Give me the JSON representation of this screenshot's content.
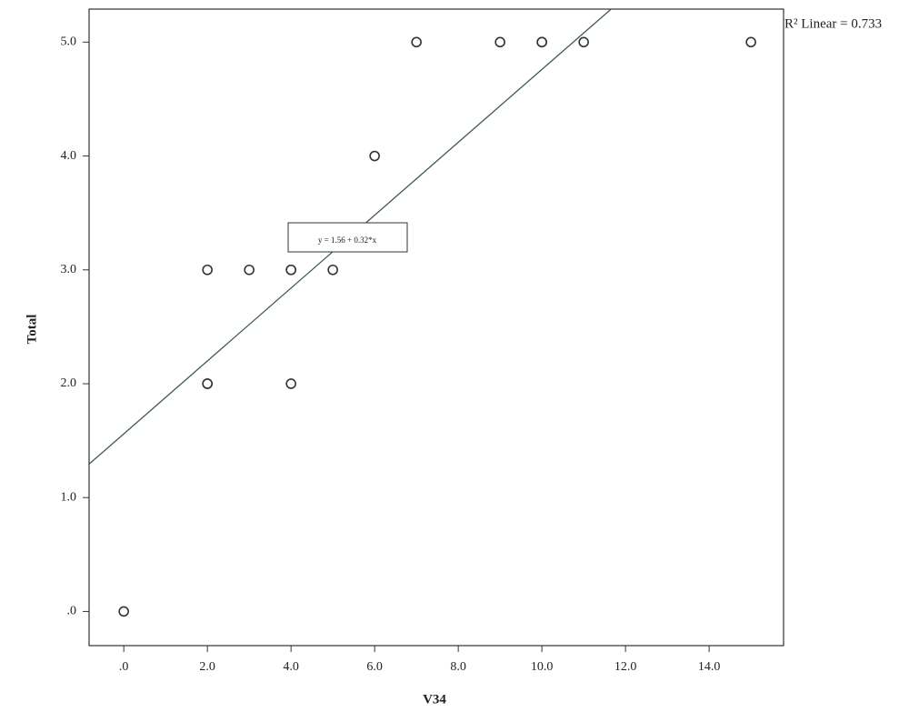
{
  "chart_data": {
    "type": "scatter",
    "x_label": "V34",
    "y_label": "Total",
    "x": [
      0,
      2,
      2,
      2,
      3,
      4,
      4,
      4,
      5,
      6,
      7,
      9,
      10,
      10,
      11,
      15
    ],
    "values": [
      0,
      2,
      2,
      3,
      3,
      3,
      3,
      2,
      3,
      4,
      5,
      5,
      5,
      5,
      5,
      5
    ],
    "color": "#333333",
    "xlim": [
      -0.83,
      15.78
    ],
    "ylim": [
      -0.3,
      5.29
    ],
    "xticks": [
      {
        "value": 0,
        "label": ".0"
      },
      {
        "value": 2,
        "label": "2.0"
      },
      {
        "value": 4,
        "label": "4.0"
      },
      {
        "value": 6,
        "label": "6.0"
      },
      {
        "value": 8,
        "label": "8.0"
      },
      {
        "value": 10,
        "label": "10.0"
      },
      {
        "value": 12,
        "label": "12.0"
      },
      {
        "value": 14,
        "label": "14.0"
      }
    ],
    "yticks": [
      {
        "value": 0,
        "label": ".0"
      },
      {
        "value": 1,
        "label": "1.0"
      },
      {
        "value": 2,
        "label": "2.0"
      },
      {
        "value": 3,
        "label": "3.0"
      },
      {
        "value": 4,
        "label": "4.0"
      },
      {
        "value": 5,
        "label": "5.0"
      }
    ],
    "fit_line": {
      "intercept": 1.56,
      "slope": 0.32,
      "label": "y = 1.56 + 0.32*x",
      "color": "#3d5a5a"
    },
    "r2_label": "R² Linear = 0.733"
  }
}
